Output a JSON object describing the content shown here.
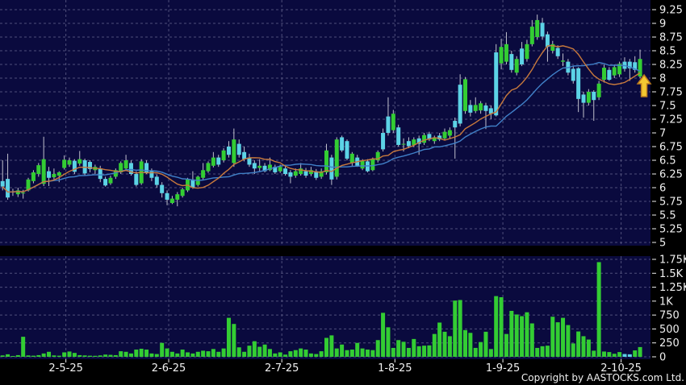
{
  "meta": {
    "copyright": "Copyright by AASTOCKS.com Ltd."
  },
  "colors": {
    "background": "#000000",
    "panel": "#0a0a3e",
    "grid": "#5c5c86",
    "up": "#33cd33",
    "down": "#5cd3e6",
    "wick": "#c0c0cc",
    "ma_fast": "#c8793c",
    "ma_slow": "#4080c8",
    "text": "#f0f0f0",
    "arrow_fill": "#f4c832",
    "arrow_stroke": "#bb7a1e",
    "volume_up": "#33cd33",
    "volume_down": "#5cd3e6"
  },
  "chart_data": {
    "type": "candlestick+volume",
    "title": "",
    "legend": [],
    "grid": "dashed",
    "price_axis": {
      "side": "right",
      "min": 5,
      "max": 9.25,
      "tick_labels": [
        "9.25",
        "9",
        "8.75",
        "8.5",
        "8.25",
        "8",
        "7.75",
        "7.5",
        "7.25",
        "7",
        "6.75",
        "6.5",
        "6.25",
        "6",
        "5.75",
        "5.5",
        "5.25",
        "5"
      ],
      "tick_values": [
        9.25,
        9,
        8.75,
        8.5,
        8.25,
        8,
        7.75,
        7.5,
        7.25,
        7,
        6.75,
        6.5,
        6.25,
        6,
        5.75,
        5.5,
        5.25,
        5
      ]
    },
    "volume_axis": {
      "side": "right",
      "tick_labels": [
        "1.75K",
        "1.5K",
        "1.25K",
        "1K",
        "750",
        "500",
        "250",
        "0"
      ],
      "tick_values": [
        1750,
        1500,
        1250,
        1000,
        750,
        500,
        250,
        0
      ]
    },
    "x_axis": {
      "tick_labels": [
        "2-5-25",
        "2-6-25",
        "2-7-25",
        "1-8-25",
        "1-9-25",
        "2-10-25"
      ],
      "tick_indices": [
        12,
        32,
        54,
        76,
        97,
        120
      ]
    },
    "ma_fast_period": 10,
    "ma_slow_period": 20,
    "marker": {
      "type": "up-arrow",
      "name": "buy-signal-arrow"
    },
    "candles_ohlc": [
      [
        6.12,
        6.5,
        5.95,
        6.02
      ],
      [
        6.16,
        6.62,
        5.78,
        5.82
      ],
      [
        5.93,
        5.98,
        5.85,
        5.93
      ],
      [
        5.88,
        6.0,
        5.83,
        5.95
      ],
      [
        5.91,
        5.96,
        5.8,
        5.91
      ],
      [
        5.95,
        6.18,
        5.93,
        6.15
      ],
      [
        6.12,
        6.32,
        6.08,
        6.28
      ],
      [
        6.25,
        6.45,
        6.2,
        6.41
      ],
      [
        6.07,
        6.93,
        6.03,
        6.52
      ],
      [
        6.3,
        6.38,
        6.03,
        6.18
      ],
      [
        6.19,
        6.35,
        6.15,
        6.25
      ],
      [
        6.22,
        6.3,
        6.1,
        6.28
      ],
      [
        6.36,
        6.59,
        6.33,
        6.51
      ],
      [
        6.42,
        6.55,
        6.38,
        6.5
      ],
      [
        6.49,
        6.52,
        6.25,
        6.29
      ],
      [
        6.44,
        6.67,
        6.4,
        6.52
      ],
      [
        6.5,
        6.53,
        6.22,
        6.26
      ],
      [
        6.47,
        6.5,
        6.28,
        6.34
      ],
      [
        6.32,
        6.42,
        6.25,
        6.38
      ],
      [
        6.35,
        6.4,
        6.1,
        6.16
      ],
      [
        6.16,
        6.2,
        6.02,
        6.04
      ],
      [
        6.08,
        6.22,
        6.05,
        6.18
      ],
      [
        6.2,
        6.35,
        6.16,
        6.32
      ],
      [
        6.28,
        6.48,
        6.25,
        6.45
      ],
      [
        6.35,
        6.6,
        6.32,
        6.5
      ],
      [
        6.45,
        6.5,
        6.22,
        6.25
      ],
      [
        6.25,
        6.3,
        6.02,
        6.05
      ],
      [
        6.08,
        6.52,
        6.05,
        6.48
      ],
      [
        6.45,
        6.5,
        6.25,
        6.28
      ],
      [
        6.3,
        6.35,
        6.12,
        6.18
      ],
      [
        6.2,
        6.24,
        6.0,
        6.05
      ],
      [
        6.05,
        6.1,
        5.82,
        5.9
      ],
      [
        5.9,
        5.95,
        5.68,
        5.78
      ],
      [
        5.72,
        5.85,
        5.7,
        5.8
      ],
      [
        5.78,
        5.92,
        5.66,
        5.88
      ],
      [
        5.85,
        6.0,
        5.82,
        5.97
      ],
      [
        5.95,
        6.18,
        5.92,
        6.15
      ],
      [
        6.15,
        6.3,
        5.98,
        6.0
      ],
      [
        6.05,
        6.22,
        6.02,
        6.2
      ],
      [
        6.18,
        6.45,
        6.15,
        6.32
      ],
      [
        6.3,
        6.48,
        6.27,
        6.45
      ],
      [
        6.4,
        6.65,
        6.37,
        6.55
      ],
      [
        6.55,
        6.6,
        6.38,
        6.42
      ],
      [
        6.5,
        6.72,
        6.46,
        6.68
      ],
      [
        6.75,
        6.85,
        6.55,
        6.6
      ],
      [
        6.45,
        7.08,
        6.38,
        6.88
      ],
      [
        6.8,
        6.88,
        6.55,
        6.6
      ],
      [
        6.65,
        6.75,
        6.48,
        6.52
      ],
      [
        6.55,
        6.62,
        6.38,
        6.42
      ],
      [
        6.45,
        6.5,
        6.25,
        6.35
      ],
      [
        6.36,
        6.52,
        6.3,
        6.4
      ],
      [
        6.4,
        6.45,
        6.28,
        6.3
      ],
      [
        6.32,
        6.55,
        6.3,
        6.42
      ],
      [
        6.38,
        6.42,
        6.25,
        6.28
      ],
      [
        6.3,
        6.42,
        6.27,
        6.38
      ],
      [
        6.35,
        6.4,
        6.22,
        6.25
      ],
      [
        6.28,
        6.32,
        6.08,
        6.2
      ],
      [
        6.22,
        6.35,
        6.18,
        6.3
      ],
      [
        6.25,
        6.45,
        6.22,
        6.35
      ],
      [
        6.3,
        6.36,
        6.18,
        6.22
      ],
      [
        6.25,
        6.38,
        6.21,
        6.32
      ],
      [
        6.3,
        6.34,
        6.14,
        6.18
      ],
      [
        6.2,
        6.35,
        6.16,
        6.3
      ],
      [
        6.28,
        6.8,
        6.24,
        6.68
      ],
      [
        6.55,
        6.6,
        6.05,
        6.15
      ],
      [
        6.2,
        6.92,
        6.15,
        6.88
      ],
      [
        6.92,
        6.95,
        6.65,
        6.68
      ],
      [
        6.85,
        6.88,
        6.5,
        6.53
      ],
      [
        6.45,
        6.65,
        6.4,
        6.62
      ],
      [
        6.55,
        6.6,
        6.38,
        6.4
      ],
      [
        6.35,
        6.52,
        6.32,
        6.5
      ],
      [
        6.48,
        6.52,
        6.28,
        6.3
      ],
      [
        6.32,
        6.55,
        6.3,
        6.52
      ],
      [
        6.5,
        6.68,
        6.46,
        6.65
      ],
      [
        7.0,
        7.08,
        6.66,
        6.7
      ],
      [
        7.3,
        7.65,
        6.95,
        7.0
      ],
      [
        7.05,
        7.42,
        7.0,
        7.35
      ],
      [
        7.1,
        7.15,
        6.75,
        6.78
      ],
      [
        6.8,
        6.9,
        6.66,
        6.8
      ],
      [
        6.85,
        6.92,
        6.72,
        6.76
      ],
      [
        6.78,
        6.92,
        6.74,
        6.88
      ],
      [
        6.9,
        6.95,
        6.6,
        6.8
      ],
      [
        6.82,
        7.0,
        6.78,
        6.96
      ],
      [
        6.98,
        7.02,
        6.85,
        6.88
      ],
      [
        6.85,
        6.95,
        6.8,
        6.92
      ],
      [
        6.95,
        7.0,
        6.85,
        6.88
      ],
      [
        6.9,
        7.08,
        6.86,
        7.02
      ],
      [
        6.95,
        7.1,
        6.9,
        7.05
      ],
      [
        7.22,
        7.28,
        6.53,
        7.1
      ],
      [
        7.88,
        8.07,
        7.12,
        7.17
      ],
      [
        7.4,
        8.02,
        7.35,
        7.98
      ],
      [
        7.51,
        7.6,
        7.3,
        7.37
      ],
      [
        7.4,
        7.65,
        7.36,
        7.51
      ],
      [
        7.41,
        7.58,
        7.35,
        7.54
      ],
      [
        7.5,
        7.55,
        7.07,
        7.4
      ],
      [
        7.45,
        7.5,
        7.25,
        7.35
      ],
      [
        8.47,
        8.62,
        7.3,
        7.32
      ],
      [
        8.27,
        8.72,
        8.16,
        8.57
      ],
      [
        8.3,
        8.84,
        8.25,
        8.62
      ],
      [
        8.44,
        8.5,
        8.1,
        8.15
      ],
      [
        8.1,
        8.4,
        8.05,
        8.35
      ],
      [
        8.54,
        8.66,
        8.22,
        8.25
      ],
      [
        8.35,
        8.7,
        8.3,
        8.62
      ],
      [
        8.62,
        9.06,
        8.58,
        8.94
      ],
      [
        8.75,
        9.16,
        8.7,
        9.06
      ],
      [
        9.01,
        9.1,
        8.7,
        8.76
      ],
      [
        8.8,
        8.85,
        8.3,
        8.57
      ],
      [
        8.5,
        8.68,
        8.45,
        8.62
      ],
      [
        8.55,
        8.6,
        8.35,
        8.4
      ],
      [
        8.3,
        8.45,
        8.22,
        8.32
      ],
      [
        8.3,
        8.35,
        8.05,
        8.1
      ],
      [
        8.17,
        8.22,
        7.9,
        7.95
      ],
      [
        8.18,
        8.2,
        7.38,
        7.62
      ],
      [
        7.7,
        7.75,
        7.28,
        7.55
      ],
      [
        7.55,
        7.8,
        7.5,
        7.75
      ],
      [
        7.75,
        7.78,
        7.22,
        7.6
      ],
      [
        7.65,
        7.95,
        7.6,
        7.9
      ],
      [
        7.97,
        8.25,
        7.92,
        8.19
      ],
      [
        8.15,
        8.2,
        7.95,
        7.97
      ],
      [
        8.05,
        8.25,
        8.0,
        8.2
      ],
      [
        8.07,
        8.3,
        8.02,
        8.26
      ],
      [
        8.3,
        8.38,
        8.12,
        8.17
      ],
      [
        8.3,
        8.35,
        7.95,
        8.18
      ],
      [
        8.29,
        8.4,
        8.1,
        8.15
      ],
      [
        8.03,
        8.52,
        8.0,
        8.35
      ]
    ],
    "volumes": [
      25,
      45,
      15,
      30,
      360,
      25,
      20,
      30,
      60,
      90,
      25,
      20,
      80,
      95,
      70,
      30,
      25,
      20,
      18,
      25,
      40,
      35,
      30,
      100,
      90,
      60,
      130,
      145,
      130,
      60,
      50,
      250,
      150,
      90,
      60,
      130,
      80,
      60,
      90,
      110,
      100,
      140,
      90,
      150,
      700,
      590,
      170,
      90,
      200,
      280,
      180,
      220,
      140,
      60,
      80,
      40,
      100,
      120,
      150,
      130,
      60,
      50,
      100,
      340,
      385,
      150,
      220,
      120,
      130,
      250,
      150,
      130,
      120,
      300,
      790,
      530,
      160,
      300,
      270,
      160,
      320,
      190,
      200,
      205,
      410,
      615,
      450,
      370,
      1010,
      1020,
      480,
      430,
      160,
      265,
      450,
      140,
      1090,
      1070,
      410,
      825,
      760,
      730,
      800,
      600,
      160,
      190,
      200,
      720,
      620,
      700,
      570,
      240,
      455,
      370,
      310,
      110,
      1700,
      95,
      85,
      55,
      85,
      50,
      45,
      115,
      175
    ],
    "volume_down_indices": [
      121,
      122
    ]
  }
}
